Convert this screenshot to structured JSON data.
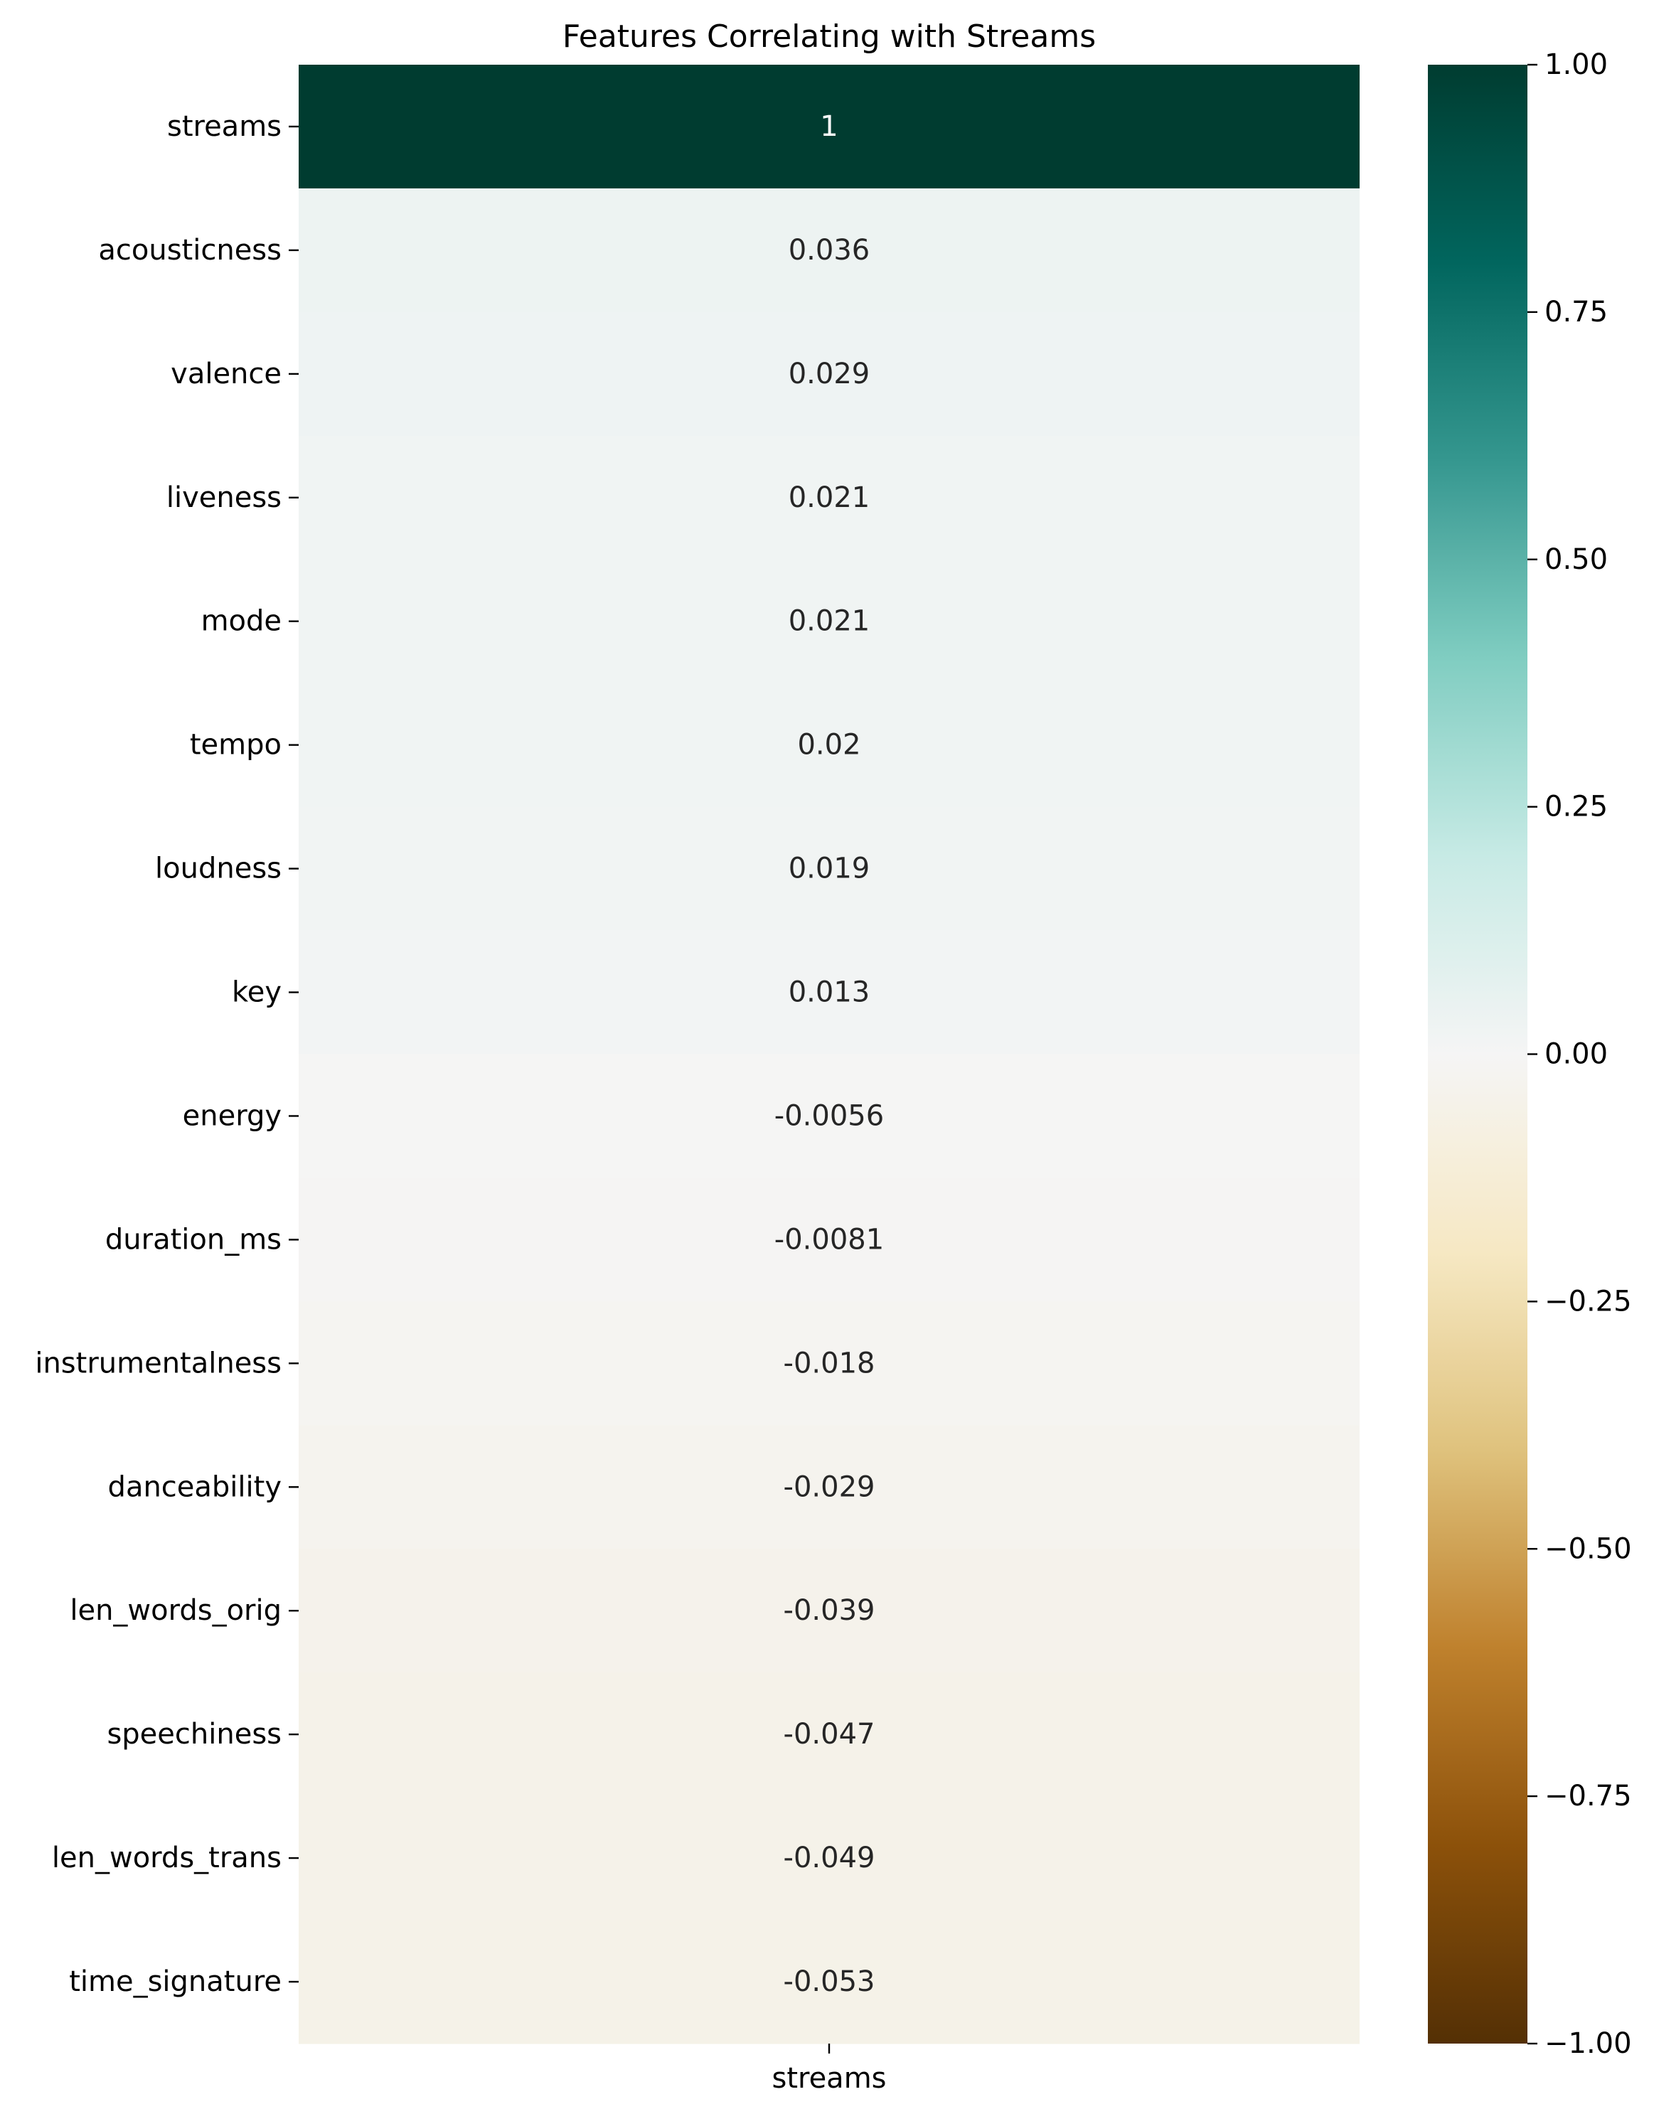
{
  "chart_data": {
    "type": "heatmap",
    "title": "Features Correlating with Streams",
    "x_categories": [
      "streams"
    ],
    "y_categories": [
      "streams",
      "acousticness",
      "valence",
      "liveness",
      "mode",
      "tempo",
      "loudness",
      "key",
      "energy",
      "duration_ms",
      "instrumentalness",
      "danceability",
      "len_words_orig",
      "speechiness",
      "len_words_trans",
      "time_signature"
    ],
    "values": [
      1,
      0.036,
      0.029,
      0.021,
      0.021,
      0.02,
      0.019,
      0.013,
      -0.0056,
      -0.0081,
      -0.018,
      -0.029,
      -0.039,
      -0.047,
      -0.049,
      -0.053
    ],
    "value_labels": [
      "1",
      "0.036",
      "0.029",
      "0.021",
      "0.021",
      "0.02",
      "0.019",
      "0.013",
      "-0.0056",
      "-0.0081",
      "-0.018",
      "-0.029",
      "-0.039",
      "-0.047",
      "-0.049",
      "-0.053"
    ],
    "colormap": "BrBG",
    "vmin": -1,
    "vmax": 1,
    "colorbar": {
      "ticks": [
        1,
        0.75,
        0.5,
        0.25,
        0,
        -0.25,
        -0.5,
        -0.75,
        -1
      ],
      "tick_labels": [
        "1.00",
        "0.75",
        "0.50",
        "0.25",
        "0.00",
        "−0.25",
        "−0.50",
        "−0.75",
        "−1.00"
      ]
    },
    "colormap_stops": [
      {
        "v": -1.0,
        "color": "#543005"
      },
      {
        "v": -0.8,
        "color": "#8c510a"
      },
      {
        "v": -0.6,
        "color": "#bf812d"
      },
      {
        "v": -0.4,
        "color": "#dfc27d"
      },
      {
        "v": -0.2,
        "color": "#f6e8c3"
      },
      {
        "v": 0.0,
        "color": "#f5f5f5"
      },
      {
        "v": 0.2,
        "color": "#c7eae5"
      },
      {
        "v": 0.4,
        "color": "#80cdc1"
      },
      {
        "v": 0.6,
        "color": "#35978f"
      },
      {
        "v": 0.8,
        "color": "#01665e"
      },
      {
        "v": 1.0,
        "color": "#003c30"
      }
    ]
  }
}
